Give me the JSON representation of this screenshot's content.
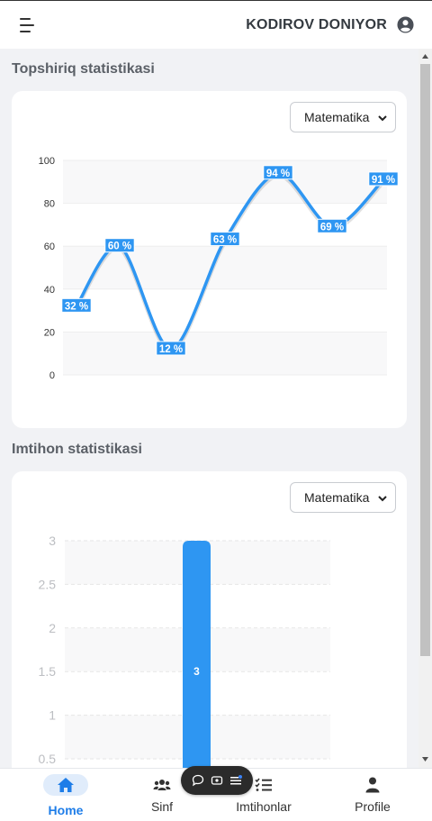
{
  "header": {
    "user_name": "KODIROV DONIYOR"
  },
  "task_section": {
    "title": "Topshiriq statistikasi",
    "subject_select": "Matematika"
  },
  "exam_section": {
    "title": "Imtihon statistikasi",
    "subject_select": "Matematika"
  },
  "chart_data": [
    {
      "type": "line",
      "x": [
        1,
        2,
        3,
        4,
        5,
        6,
        7
      ],
      "values": [
        32,
        60,
        12,
        63,
        94,
        69,
        91
      ],
      "data_labels": [
        "32 %",
        "60 %",
        "12 %",
        "63 %",
        "94 %",
        "69 %",
        "91 %"
      ],
      "yticks": [
        "0",
        "20",
        "40",
        "60",
        "80",
        "100"
      ],
      "ylim": [
        0,
        100
      ],
      "color": "#2e96f2",
      "grid": true
    },
    {
      "type": "bar",
      "values": [
        3
      ],
      "data_labels": [
        "3"
      ],
      "yticks_visible": [
        "0.5",
        "1",
        "1.5",
        "2",
        "2.5",
        "3"
      ],
      "ylim": [
        0,
        3
      ],
      "color": "#2e96f2",
      "grid": true
    }
  ],
  "nav": {
    "items": [
      {
        "label": "Home",
        "icon": "home-icon",
        "active": true
      },
      {
        "label": "Sinf",
        "icon": "users-icon",
        "active": false
      },
      {
        "label": "Imtihonlar",
        "icon": "list-check-icon",
        "active": false
      },
      {
        "label": "Profile",
        "icon": "user-icon",
        "active": false
      }
    ]
  },
  "colors": {
    "accent": "#1e7de8",
    "chart": "#2e96f2",
    "background": "#f1f2f5"
  }
}
